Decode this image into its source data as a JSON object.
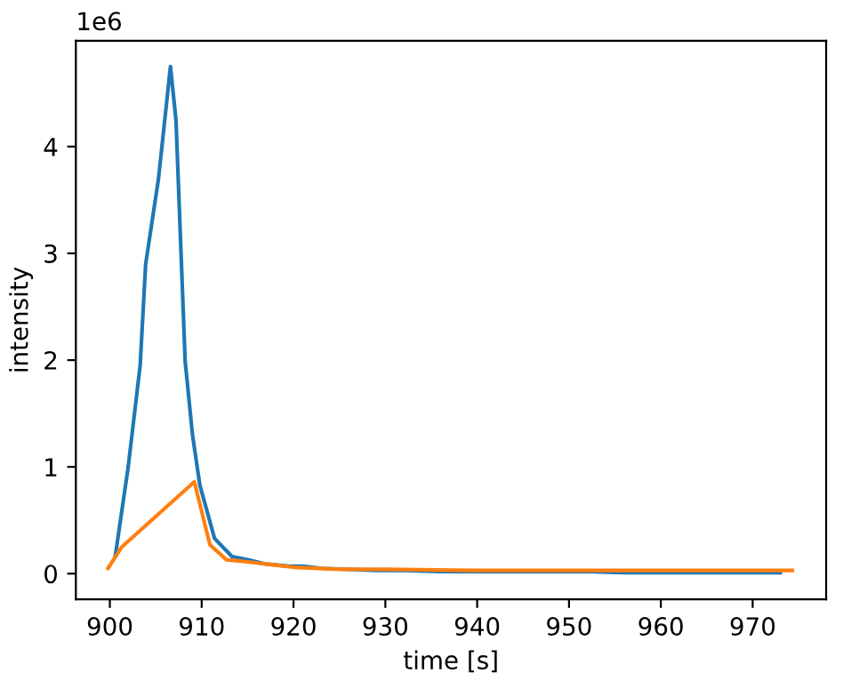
{
  "chart_data": {
    "type": "line",
    "xlabel": "time [s]",
    "ylabel": "intensity",
    "annotations": [
      "1e6"
    ],
    "xlim": [
      896.3,
      978.0
    ],
    "xticks": [
      900,
      910,
      920,
      930,
      940,
      950,
      960,
      970
    ],
    "ylim": [
      -0.24,
      4.99
    ],
    "yticks": [
      0,
      1,
      2,
      3,
      4
    ],
    "grid": false,
    "legend": false,
    "marker": "none",
    "line_style": "solid",
    "series": [
      {
        "color": "#1f77b4",
        "x": [
          900.6,
          902.0,
          903.3,
          903.9,
          905.3,
          906.6,
          907.2,
          908.2,
          909.0,
          909.8,
          911.4,
          913.3,
          915.0,
          917.0,
          919.5,
          921.0,
          923.0,
          926.0,
          929.0,
          932.0,
          936.0,
          940.0,
          944.0,
          948.0,
          952.0,
          956.0,
          960.0,
          964.0,
          968.0,
          973.0
        ],
        "values": [
          0.17,
          1.0,
          1.95,
          2.9,
          3.7,
          4.75,
          4.25,
          1.99,
          1.3,
          0.83,
          0.33,
          0.16,
          0.13,
          0.09,
          0.07,
          0.07,
          0.05,
          null,
          0.03,
          0.03,
          0.02,
          0.02,
          0.02,
          0.02,
          0.02,
          0.01,
          0.01,
          0.01,
          0.01,
          0.01
        ]
      },
      {
        "color": "#ff7f0e",
        "x": [
          899.8,
          901.3,
          909.2,
          910.9,
          912.7,
          915.0,
          918.0,
          920.0,
          925.0,
          930.0,
          940.0,
          950.0,
          960.0,
          970.0,
          974.3
        ],
        "values": [
          0.05,
          0.25,
          0.86,
          0.27,
          0.13,
          0.11,
          0.08,
          0.06,
          0.04,
          0.04,
          0.03,
          0.03,
          0.03,
          0.03,
          0.03
        ]
      }
    ]
  }
}
